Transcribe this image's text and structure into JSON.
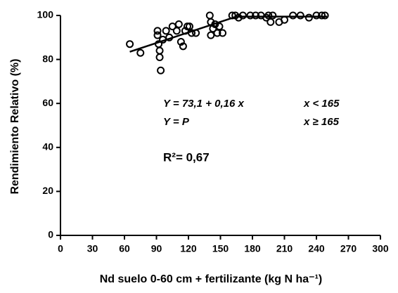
{
  "chart_data": {
    "type": "scatter",
    "xlabel": "Nd suelo 0-60 cm + fertilizante (kg N ha⁻¹)",
    "ylabel": "Rendimiento Relativo (%)",
    "xlim": [
      0,
      300
    ],
    "xticks": [
      0,
      30,
      60,
      90,
      120,
      150,
      180,
      210,
      240,
      270,
      300
    ],
    "ylim": [
      0,
      100
    ],
    "yticks": [
      0,
      20,
      40,
      60,
      80,
      100
    ],
    "annotations": [
      "Y = 73,1 + 0,16 x",
      "x < 165",
      "Y = P",
      "x ≥ 165",
      "R²= 0,67"
    ],
    "x": [
      65,
      75,
      91,
      91,
      92,
      93,
      93,
      94,
      96,
      99,
      102,
      105,
      109,
      111,
      113,
      115,
      117,
      119,
      121,
      123,
      127,
      140,
      141,
      141,
      143,
      145,
      147,
      149,
      152,
      161,
      164,
      167,
      171,
      178,
      183,
      188,
      193,
      195,
      197,
      199,
      205,
      210,
      218,
      225,
      233,
      240,
      245,
      248
    ],
    "values": [
      87,
      83,
      93,
      91,
      87,
      84,
      81,
      75,
      89,
      93,
      90,
      95,
      93,
      96,
      88,
      86,
      93,
      95,
      95,
      92,
      92,
      100,
      97,
      91,
      94,
      96,
      92,
      95,
      92,
      100,
      100,
      99,
      100,
      100,
      100,
      100,
      99,
      100,
      97,
      100,
      97,
      98,
      100,
      100,
      99,
      100,
      100,
      100
    ],
    "color": "#000000",
    "fit": {
      "x": [
        65,
        165,
        250
      ],
      "values": [
        83.5,
        99.5,
        99.5
      ],
      "color": "#000000"
    }
  }
}
